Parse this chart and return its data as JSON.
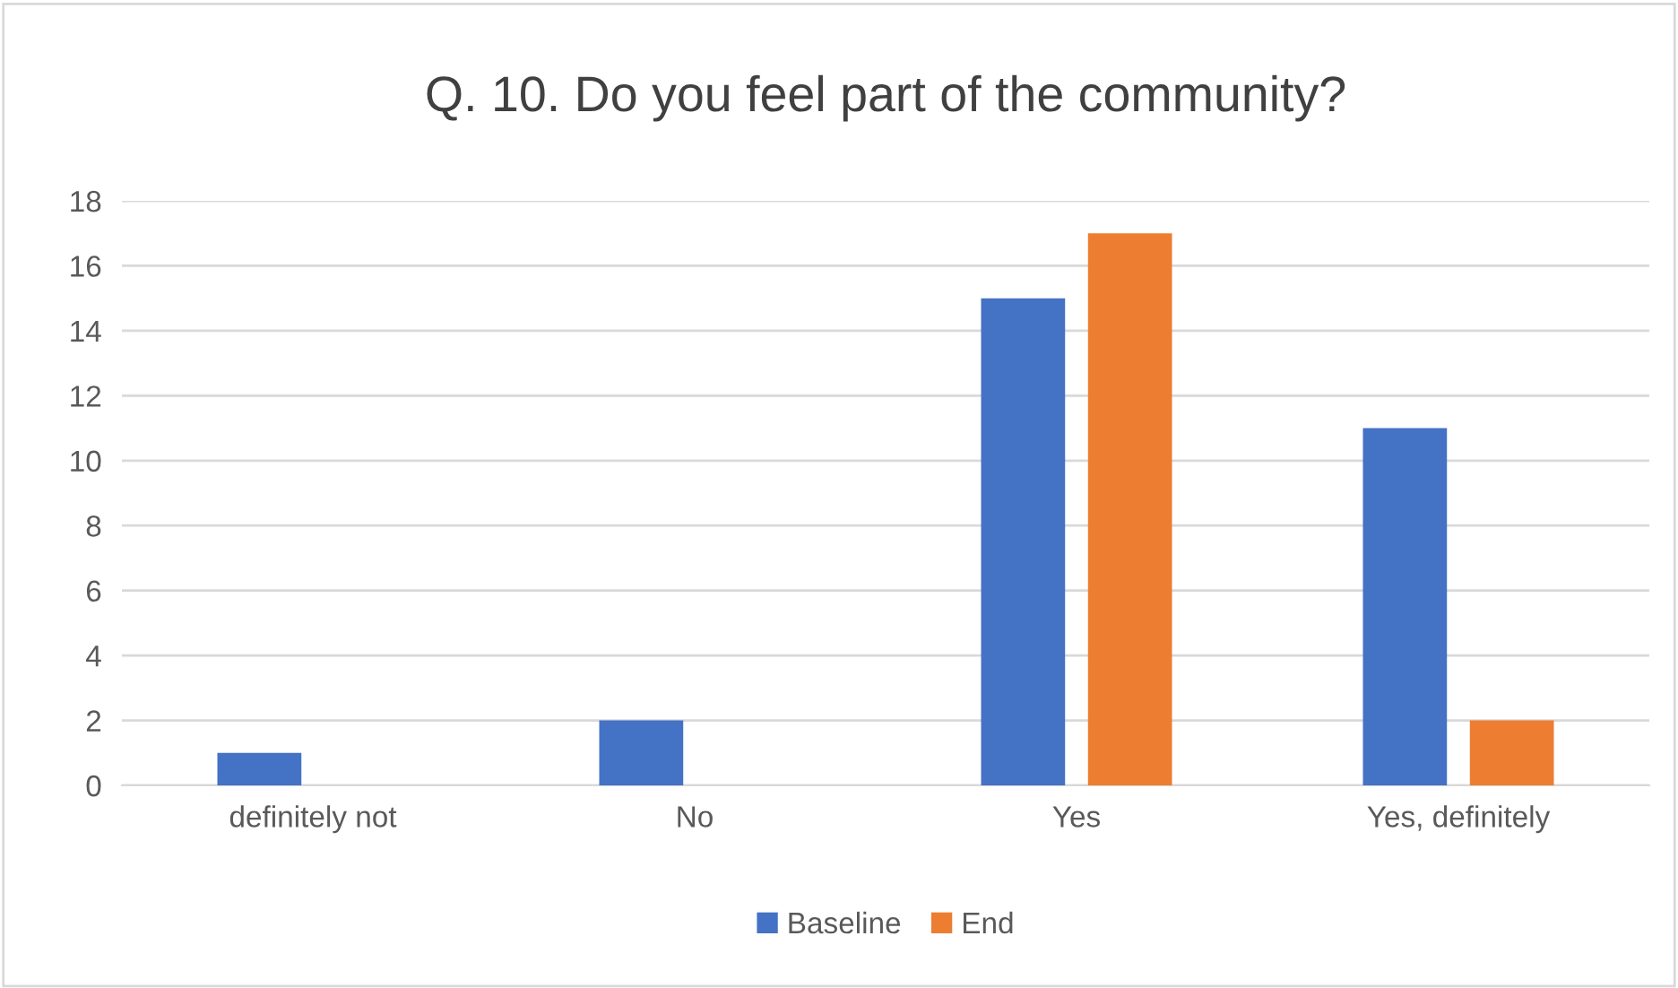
{
  "chart_data": {
    "type": "bar",
    "title": "Q. 10. Do you feel part of the community?",
    "categories": [
      "definitely not",
      "No",
      "Yes",
      "Yes, definitely"
    ],
    "series": [
      {
        "name": "Baseline",
        "color": "#4472c4",
        "values": [
          1,
          2,
          15,
          11
        ]
      },
      {
        "name": "End",
        "color": "#ed7d31",
        "values": [
          0,
          0,
          17,
          2
        ]
      }
    ],
    "ylim": [
      0,
      18
    ],
    "yticks": [
      0,
      2,
      4,
      6,
      8,
      10,
      12,
      14,
      16,
      18
    ],
    "grid": "y",
    "legend": "bottom"
  }
}
